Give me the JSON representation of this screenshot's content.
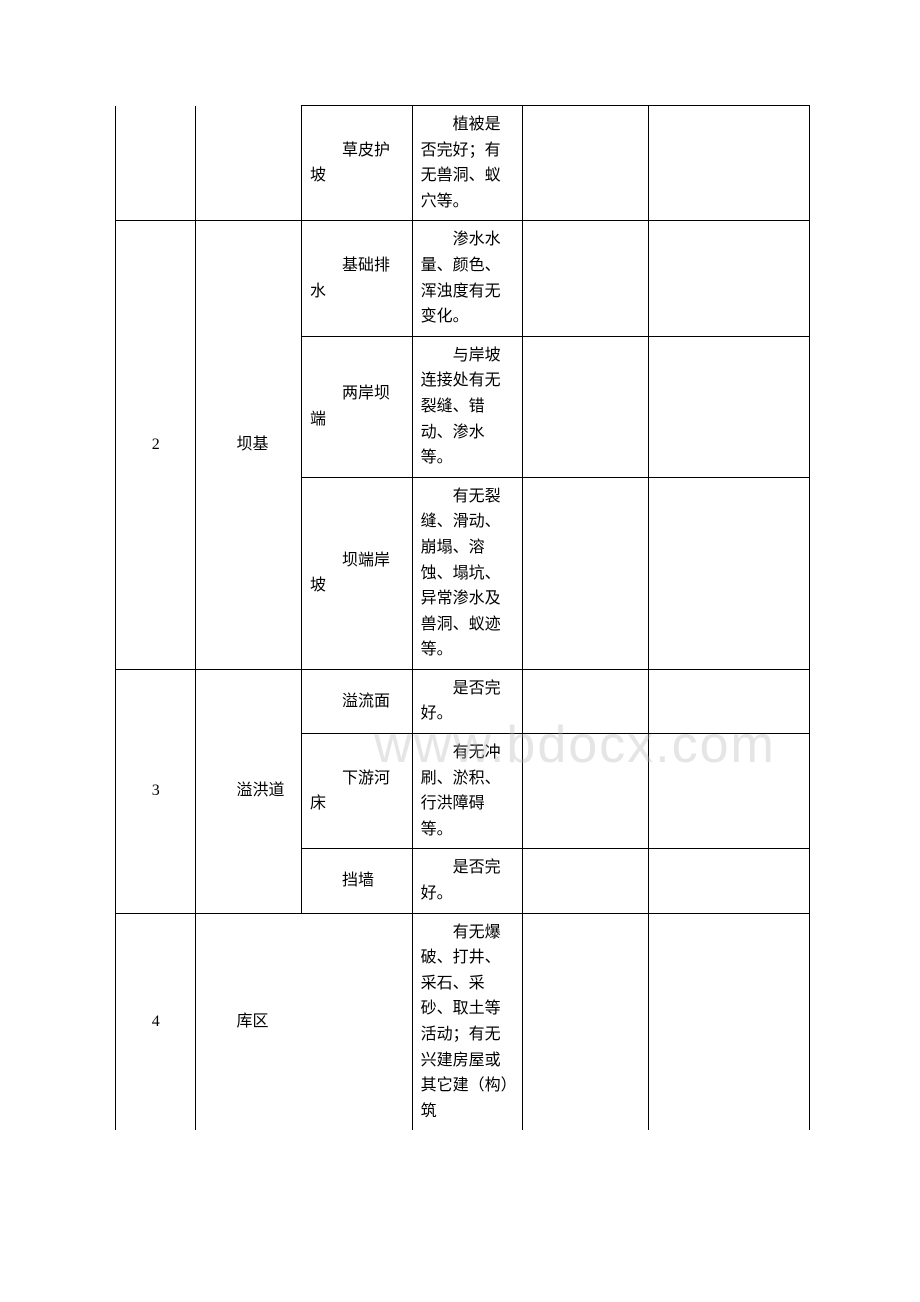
{
  "watermark": "www.bdocx.com",
  "rows": {
    "r1": {
      "sub": "草皮护坡",
      "content": "植被是否完好；有无兽洞、蚁穴等。"
    },
    "r2": {
      "num": "2",
      "cat": "坝基",
      "sub": "基础排水",
      "content": "渗水水量、颜色、浑浊度有无变化。"
    },
    "r3": {
      "sub": "两岸坝端",
      "content": "与岸坡连接处有无裂缝、错动、渗水等。"
    },
    "r4": {
      "sub": "坝端岸坡",
      "content": "有无裂缝、滑动、崩塌、溶蚀、塌坑、异常渗水及兽洞、蚁迹等。"
    },
    "r5": {
      "num": "3",
      "cat": "溢洪道",
      "sub": "溢流面",
      "content": "是否完好。"
    },
    "r6": {
      "sub": "下游河床",
      "content": "有无冲刷、淤积、行洪障碍等。"
    },
    "r7": {
      "sub": "挡墙",
      "content": "是否完好。"
    },
    "r8": {
      "num": "4",
      "cat": "库区",
      "content": "有无爆破、打井、采石、采砂、取土等活动；有无兴建房屋或其它建（构）筑"
    }
  }
}
